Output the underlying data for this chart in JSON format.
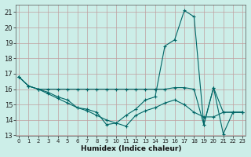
{
  "xlabel": "Humidex (Indice chaleur)",
  "bg_color": "#cceee8",
  "grid_color": "#c0a0a0",
  "line_color": "#006666",
  "xlim": [
    -0.3,
    23.3
  ],
  "ylim": [
    13,
    21.5
  ],
  "yticks": [
    13,
    14,
    15,
    16,
    17,
    18,
    19,
    20,
    21
  ],
  "xticks": [
    0,
    1,
    2,
    3,
    4,
    5,
    6,
    7,
    8,
    9,
    10,
    11,
    12,
    13,
    14,
    15,
    16,
    17,
    18,
    19,
    20,
    21,
    22,
    23
  ],
  "series": [
    [
      16.8,
      16.2,
      16.0,
      15.8,
      15.5,
      15.3,
      14.8,
      14.7,
      14.5,
      13.7,
      13.8,
      14.3,
      14.7,
      15.3,
      15.5,
      18.8,
      19.2,
      21.1,
      20.7,
      13.7,
      16.1,
      13.1,
      14.5,
      14.5
    ],
    [
      16.8,
      16.2,
      16.0,
      16.0,
      16.0,
      16.0,
      16.0,
      16.0,
      16.0,
      16.0,
      16.0,
      16.0,
      16.0,
      16.0,
      16.0,
      16.0,
      16.1,
      16.1,
      16.0,
      13.7,
      16.1,
      14.5,
      14.5,
      14.5
    ],
    [
      16.8,
      16.2,
      16.0,
      15.7,
      15.4,
      15.1,
      14.8,
      14.6,
      14.3,
      14.0,
      13.8,
      13.6,
      14.3,
      14.6,
      14.8,
      15.1,
      15.3,
      15.0,
      14.5,
      14.2,
      14.2,
      14.5,
      14.5,
      14.5
    ]
  ]
}
